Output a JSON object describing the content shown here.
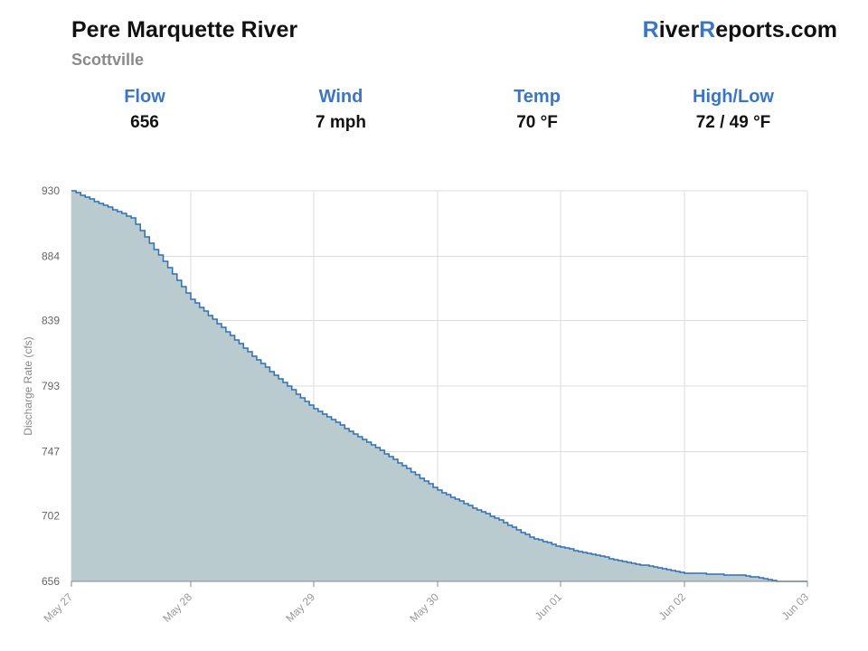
{
  "header": {
    "title": "Pere Marquette River",
    "subtitle": "Scottville",
    "brand": {
      "letter1": "R",
      "part1": "iver",
      "letter2": "R",
      "part2": "eports.com"
    }
  },
  "stats": [
    {
      "label": "Flow",
      "value": "656"
    },
    {
      "label": "Wind",
      "value": "7 mph"
    },
    {
      "label": "Temp",
      "value": "70 °F"
    },
    {
      "label": "High/Low",
      "value": "72 / 49 °F"
    }
  ],
  "colors": {
    "accent": "#3a76c4",
    "line": "#2f6fb5",
    "fill": "#b9cbce",
    "grid": "#dddddd"
  },
  "chart_data": {
    "type": "area",
    "ylabel": "Discharge Rate (cfs)",
    "xlabel": "",
    "ylim": [
      656,
      930
    ],
    "xlim": [
      "May 27",
      "Jun 03"
    ],
    "y_ticks": [
      "930",
      "884",
      "839",
      "793",
      "747",
      "702",
      "656"
    ],
    "x_ticks": [
      "May 27",
      "May 28",
      "May 29",
      "May 30",
      "Jun 01",
      "Jun 02",
      "Jun 03"
    ],
    "grid": true,
    "step": true,
    "series": [
      {
        "x": [
          "May 27 00:00",
          "May 27 12:00",
          "May 28 00:00",
          "May 28 12:00",
          "May 29 00:00",
          "May 29 12:00",
          "May 30 00:00",
          "May 30 12:00",
          "May 31 00:00",
          "May 31 12:00",
          "Jun 01 00:00",
          "Jun 01 12:00",
          "Jun 02 00:00",
          "Jun 02 12:00",
          "Jun 02 18:00",
          "Jun 03 00:00"
        ],
        "values": [
          930,
          911,
          854,
          814,
          777,
          750,
          720,
          709,
          699,
          687,
          680,
          670,
          662,
          660,
          656,
          656
        ]
      }
    ]
  }
}
